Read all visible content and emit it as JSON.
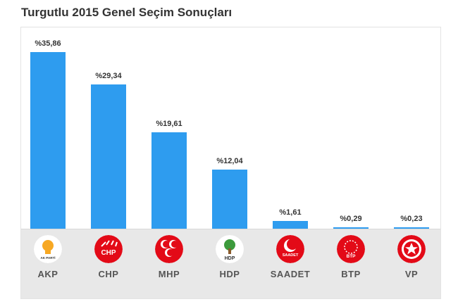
{
  "title": "Turgutlu 2015 Genel Seçim Sonuçları",
  "colors": {
    "bar": "#2e9cef",
    "akp": "#ffffff",
    "chp": "#e30a17",
    "mhp": "#e30a17",
    "hdp": "#ffffff",
    "saadet": "#e30a17",
    "btp": "#e30a17",
    "vp": "#e30a17"
  },
  "chart_data": {
    "type": "bar",
    "title": "Turgutlu 2015 Genel Seçim Sonuçları",
    "categories": [
      "AKP",
      "CHP",
      "MHP",
      "HDP",
      "SAADET",
      "BTP",
      "VP"
    ],
    "values": [
      35.86,
      29.34,
      19.61,
      12.04,
      1.61,
      0.29,
      0.23
    ],
    "labels": [
      "%35,86",
      "%29,34",
      "%19,61",
      "%12,04",
      "%1,61",
      "%0,29",
      "%0,23"
    ],
    "ylim": [
      0,
      40
    ],
    "grid": false,
    "legend": "none"
  },
  "logos": [
    {
      "icon": "akp-lightbulb-logo",
      "text": "AK PARTİ"
    },
    {
      "icon": "chp-six-arrows-logo",
      "text": "CHP"
    },
    {
      "icon": "mhp-three-crescents-logo",
      "text": ""
    },
    {
      "icon": "hdp-tree-logo",
      "text": "HDP"
    },
    {
      "icon": "saadet-crescent-logo",
      "text": "SAADET"
    },
    {
      "icon": "btp-star-circle-logo",
      "text": "BTP"
    },
    {
      "icon": "vp-star-logo",
      "text": ""
    }
  ]
}
